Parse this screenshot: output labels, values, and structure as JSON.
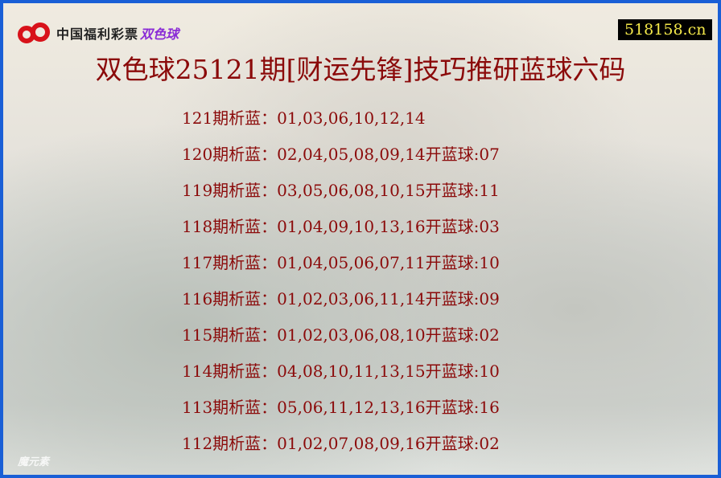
{
  "logo": {
    "org": "中国福利彩票",
    "game": "双色球",
    "brand_color": "#d8121a"
  },
  "site": "518158.cn",
  "title": "双色球25121期[财运先锋]技巧推研蓝球六码",
  "rows": [
    {
      "text": "121期析蓝：01,03,06,10,12,14",
      "result": ""
    },
    {
      "text": "120期析蓝：02,04,05,08,09,14",
      "result": "开蓝球:07"
    },
    {
      "text": "119期析蓝：03,05,06,08,10,15",
      "result": "开蓝球:11"
    },
    {
      "text": "118期析蓝：01,04,09,10,13,16",
      "result": "开蓝球:03"
    },
    {
      "text": "117期析蓝：01,04,05,06,07,11",
      "result": "开蓝球:10"
    },
    {
      "text": "116期析蓝：01,02,03,06,11,14",
      "result": "开蓝球:09"
    },
    {
      "text": "115期析蓝：01,02,03,06,08,10",
      "result": "开蓝球:02"
    },
    {
      "text": "114期析蓝：04,08,10,11,13,15",
      "result": "开蓝球:10"
    },
    {
      "text": "113期析蓝：05,06,11,12,13,16",
      "result": "开蓝球:16"
    },
    {
      "text": "112期析蓝：01,02,07,08,09,16",
      "result": "开蓝球:02"
    }
  ],
  "watermark": "魔元素",
  "colors": {
    "text": "#8b0a0a",
    "border": "#1a5fd6",
    "site_bg": "#000000",
    "site_text": "#f4e94a"
  }
}
